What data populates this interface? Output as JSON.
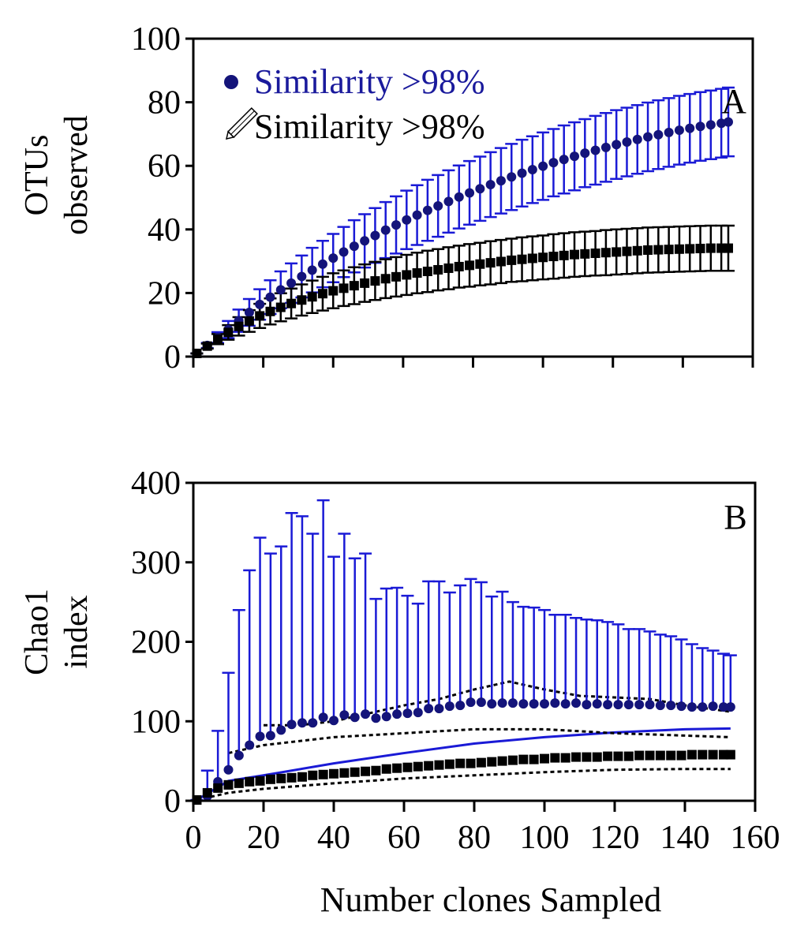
{
  "x_axis_label": "Number clones Sampled",
  "chart_data": [
    {
      "type": "scatter",
      "panel_label": "A",
      "ylabel_line1": "OTUs",
      "ylabel_line2": "observed",
      "ylim": [
        0,
        100
      ],
      "yticks": [
        0,
        20,
        40,
        60,
        80,
        100
      ],
      "xlim": [
        0,
        160
      ],
      "xticks": [
        0,
        20,
        40,
        60,
        80,
        100,
        120,
        140,
        160
      ],
      "show_x_tick_labels": false,
      "legend": {
        "position": "top-left",
        "entries": [
          {
            "label": "Similarity >98%",
            "marker": "circle",
            "color": "#1a1a9c"
          },
          {
            "label": "Similarity >98%",
            "marker": "pencil-icon",
            "color": "#000000"
          }
        ]
      },
      "series": [
        {
          "name": "Similarity >98% (blue)",
          "marker": "circle",
          "color": "#14147a",
          "error_color": "#1a1ad6",
          "x": [
            1,
            4,
            7,
            10,
            13,
            16,
            19,
            22,
            25,
            28,
            31,
            34,
            37,
            40,
            43,
            46,
            49,
            52,
            55,
            58,
            61,
            64,
            67,
            70,
            73,
            76,
            79,
            82,
            85,
            88,
            91,
            94,
            97,
            100,
            103,
            106,
            109,
            112,
            115,
            118,
            121,
            124,
            127,
            130,
            133,
            136,
            139,
            142,
            145,
            148,
            151,
            153
          ],
          "y": [
            1,
            3.5,
            6,
            8.5,
            11.3,
            13.9,
            16.4,
            18.7,
            21,
            23.1,
            25.2,
            27.2,
            29.1,
            31,
            32.9,
            34.7,
            36.4,
            38.1,
            39.8,
            41.4,
            43,
            44.5,
            46,
            47.4,
            48.8,
            50.2,
            51.5,
            52.8,
            54.1,
            55.3,
            56.5,
            57.7,
            58.8,
            59.9,
            61,
            62,
            63,
            64,
            64.9,
            65.8,
            66.7,
            67.5,
            68.3,
            69.1,
            69.8,
            70.5,
            71.2,
            71.8,
            72.4,
            72.9,
            73.4,
            73.8
          ],
          "error": [
            0,
            0.8,
            1.7,
            2.7,
            3.5,
            4.2,
            4.8,
            5.3,
            5.8,
            6.2,
            6.6,
            7,
            7.3,
            7.6,
            7.9,
            8.2,
            8.4,
            8.6,
            8.8,
            9,
            9.2,
            9.4,
            9.6,
            9.7,
            9.8,
            9.9,
            10,
            10.1,
            10.2,
            10.3,
            10.4,
            10.5,
            10.5,
            10.6,
            10.6,
            10.7,
            10.7,
            10.7,
            10.8,
            10.8,
            10.8,
            10.8,
            10.8,
            10.8,
            10.8,
            10.8,
            10.8,
            10.8,
            10.8,
            10.8,
            10.8,
            10.8
          ]
        },
        {
          "name": "Similarity >98% (black)",
          "marker": "square",
          "color": "#000000",
          "error_color": "#000000",
          "x": [
            1,
            4,
            7,
            10,
            13,
            16,
            19,
            22,
            25,
            28,
            31,
            34,
            37,
            40,
            43,
            46,
            49,
            52,
            55,
            58,
            61,
            64,
            67,
            70,
            73,
            76,
            79,
            82,
            85,
            88,
            91,
            94,
            97,
            100,
            103,
            106,
            109,
            112,
            115,
            118,
            121,
            124,
            127,
            130,
            133,
            136,
            139,
            142,
            145,
            148,
            151,
            153
          ],
          "y": [
            1,
            3.3,
            5.5,
            7.6,
            9.5,
            11.2,
            12.8,
            14.2,
            15.5,
            16.7,
            17.8,
            18.8,
            19.8,
            20.7,
            21.5,
            22.3,
            23.1,
            23.8,
            24.5,
            25.1,
            25.7,
            26.3,
            26.8,
            27.3,
            27.8,
            28.3,
            28.7,
            29.1,
            29.5,
            29.9,
            30.3,
            30.6,
            30.9,
            31.2,
            31.5,
            31.8,
            32.1,
            32.3,
            32.5,
            32.7,
            32.9,
            33.1,
            33.3,
            33.5,
            33.6,
            33.7,
            33.8,
            33.9,
            34,
            34.1,
            34.1,
            34.1
          ],
          "error": [
            0,
            0.8,
            1.6,
            2.3,
            2.9,
            3.4,
            3.8,
            4.1,
            4.4,
            4.7,
            4.9,
            5.1,
            5.3,
            5.5,
            5.6,
            5.8,
            5.9,
            6,
            6.1,
            6.2,
            6.3,
            6.4,
            6.5,
            6.5,
            6.6,
            6.6,
            6.7,
            6.7,
            6.8,
            6.8,
            6.8,
            6.9,
            6.9,
            6.9,
            7,
            7,
            7,
            7,
            7,
            7.1,
            7.1,
            7.1,
            7.1,
            7.1,
            7.1,
            7.1,
            7.1,
            7.1,
            7.1,
            7.1,
            7.1,
            7.1
          ]
        }
      ]
    },
    {
      "type": "scatter",
      "panel_label": "B",
      "ylabel_line1": "Chao1",
      "ylabel_line2": "index",
      "ylim": [
        0,
        400
      ],
      "yticks": [
        0,
        100,
        200,
        300,
        400
      ],
      "xlim": [
        0,
        160
      ],
      "xticks": [
        0,
        20,
        40,
        60,
        80,
        100,
        120,
        140,
        160
      ],
      "x_tick_labels": [
        "0",
        "20",
        "40",
        "60",
        "80",
        "100",
        "120",
        "140",
        "160"
      ],
      "series": [
        {
          "name": "Chao1 (blue)",
          "marker": "circle",
          "color": "#14147a",
          "error_color": "#1a1ad6",
          "x": [
            1,
            4,
            7,
            10,
            13,
            16,
            19,
            22,
            25,
            28,
            31,
            34,
            37,
            40,
            43,
            46,
            49,
            52,
            55,
            58,
            61,
            64,
            67,
            70,
            73,
            76,
            79,
            82,
            85,
            88,
            91,
            94,
            97,
            100,
            103,
            106,
            109,
            112,
            115,
            118,
            121,
            124,
            127,
            130,
            133,
            136,
            139,
            142,
            145,
            148,
            151,
            153
          ],
          "y": [
            1,
            6,
            24,
            39,
            57,
            70,
            81,
            82,
            89,
            96,
            98,
            98,
            105,
            101,
            108,
            105,
            109,
            104,
            106,
            109,
            110,
            111,
            116,
            116,
            119,
            120,
            124,
            124,
            122,
            123,
            123,
            122,
            122,
            122,
            123,
            122,
            123,
            121,
            122,
            121,
            121,
            121,
            121,
            121,
            120,
            120,
            119,
            118,
            118,
            119,
            118,
            118
          ],
          "upper": [
            1,
            38,
            88,
            161,
            240,
            290,
            331,
            311,
            320,
            362,
            358,
            336,
            378,
            307,
            336,
            305,
            311,
            254,
            267,
            268,
            258,
            248,
            276,
            276,
            262,
            271,
            279,
            275,
            257,
            263,
            250,
            244,
            243,
            240,
            234,
            234,
            230,
            228,
            227,
            225,
            222,
            216,
            216,
            213,
            209,
            207,
            203,
            197,
            192,
            189,
            185,
            183
          ]
        },
        {
          "name": "Chao1 (black)",
          "marker": "square",
          "color": "#000000",
          "error_color": "#000000",
          "x": [
            1,
            4,
            7,
            10,
            13,
            16,
            19,
            22,
            25,
            28,
            31,
            34,
            37,
            40,
            43,
            46,
            49,
            52,
            55,
            58,
            61,
            64,
            67,
            70,
            73,
            76,
            79,
            82,
            85,
            88,
            91,
            94,
            97,
            100,
            103,
            106,
            109,
            112,
            115,
            118,
            121,
            124,
            127,
            130,
            133,
            136,
            139,
            142,
            145,
            148,
            151,
            153
          ],
          "y": [
            1,
            10,
            16,
            20,
            22,
            24,
            25,
            27,
            28,
            29,
            30,
            32,
            33,
            34,
            35,
            36,
            37,
            38,
            40,
            41,
            42,
            43,
            44,
            45,
            46,
            47,
            47,
            48,
            49,
            50,
            51,
            52,
            52,
            53,
            54,
            54,
            55,
            55,
            55,
            56,
            56,
            56,
            57,
            57,
            57,
            57,
            57,
            58,
            58,
            58,
            58,
            58
          ]
        }
      ],
      "lines": [
        {
          "name": "blue lower bound",
          "style": "solid",
          "color": "#1a1ad6",
          "x": [
            1,
            10,
            20,
            40,
            60,
            80,
            100,
            120,
            140,
            153
          ],
          "y": [
            1,
            25,
            32,
            47,
            60,
            72,
            80,
            86,
            90,
            91
          ]
        },
        {
          "name": "black upper bound",
          "style": "dotted",
          "color": "#000000",
          "x": [
            20,
            30,
            40,
            50,
            60,
            70,
            80,
            90,
            100,
            110,
            120,
            130,
            140,
            153
          ],
          "y": [
            95,
            95,
            100,
            110,
            120,
            128,
            140,
            150,
            140,
            132,
            130,
            128,
            120,
            112
          ]
        },
        {
          "name": "black middle bound",
          "style": "dotted",
          "color": "#000000",
          "x": [
            10,
            20,
            40,
            60,
            80,
            100,
            120,
            140,
            153
          ],
          "y": [
            60,
            70,
            80,
            85,
            90,
            90,
            85,
            82,
            80
          ]
        },
        {
          "name": "black lower bound",
          "style": "dotted",
          "color": "#000000",
          "x": [
            1,
            10,
            20,
            40,
            60,
            80,
            100,
            120,
            140,
            153
          ],
          "y": [
            1,
            10,
            15,
            22,
            28,
            32,
            36,
            39,
            40,
            40
          ]
        }
      ]
    }
  ]
}
